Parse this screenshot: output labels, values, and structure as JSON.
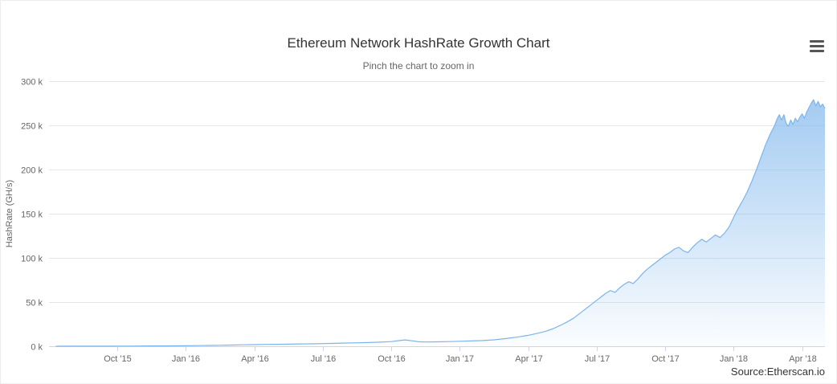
{
  "chart": {
    "source": "Source:Etherscan.io"
  },
  "icons": {
    "menu": "hamburger-icon"
  },
  "colors": {
    "line": "#7cb5ec",
    "area_top": "rgba(124,181,236,0.75)",
    "area_bottom": "rgba(124,181,236,0.03)",
    "grid": "#e6e6e6",
    "axis_line": "#ccd6eb",
    "tick_label": "#666666",
    "title": "#333333"
  },
  "chart_data": {
    "type": "area",
    "title": "Ethereum Network HashRate Growth Chart",
    "subtitle": "Pinch the chart to zoom in",
    "xlabel": "",
    "ylabel": "HashRate (GH/s)",
    "y_unit": "thousand GH/s (axis labels shown with k suffix)",
    "x_unit": "months since 2015-07-01 (x=3 is Oct '15)",
    "xlim": [
      0,
      34
    ],
    "ylim": [
      0,
      300
    ],
    "grid": true,
    "legend": false,
    "xticks": [
      {
        "x": 3,
        "label": "Oct '15"
      },
      {
        "x": 6,
        "label": "Jan '16"
      },
      {
        "x": 9,
        "label": "Apr '16"
      },
      {
        "x": 12,
        "label": "Jul '16"
      },
      {
        "x": 15,
        "label": "Oct '16"
      },
      {
        "x": 18,
        "label": "Jan '17"
      },
      {
        "x": 21,
        "label": "Apr '17"
      },
      {
        "x": 24,
        "label": "Jul '17"
      },
      {
        "x": 27,
        "label": "Oct '17"
      },
      {
        "x": 30,
        "label": "Jan '18"
      },
      {
        "x": 33,
        "label": "Apr '18"
      }
    ],
    "yticks": [
      {
        "y": 0,
        "label": "0 k"
      },
      {
        "y": 50,
        "label": "50 k"
      },
      {
        "y": 100,
        "label": "100 k"
      },
      {
        "y": 150,
        "label": "150 k"
      },
      {
        "y": 200,
        "label": "200 k"
      },
      {
        "y": 250,
        "label": "250 k"
      },
      {
        "y": 300,
        "label": "300 k"
      }
    ],
    "points": [
      [
        0.3,
        0.02
      ],
      [
        1,
        0.05
      ],
      [
        1.5,
        0.08
      ],
      [
        2,
        0.1
      ],
      [
        2.5,
        0.13
      ],
      [
        3,
        0.17
      ],
      [
        3.5,
        0.22
      ],
      [
        4,
        0.27
      ],
      [
        4.5,
        0.32
      ],
      [
        5,
        0.38
      ],
      [
        5.5,
        0.45
      ],
      [
        6,
        0.55
      ],
      [
        6.5,
        0.7
      ],
      [
        7,
        0.9
      ],
      [
        7.5,
        1.1
      ],
      [
        8,
        1.35
      ],
      [
        8.5,
        1.6
      ],
      [
        9,
        1.85
      ],
      [
        9.5,
        2.05
      ],
      [
        10,
        2.2
      ],
      [
        10.5,
        2.4
      ],
      [
        11,
        2.6
      ],
      [
        11.5,
        2.75
      ],
      [
        12,
        3.0
      ],
      [
        12.5,
        3.3
      ],
      [
        13,
        3.6
      ],
      [
        13.5,
        3.9
      ],
      [
        14,
        4.2
      ],
      [
        14.5,
        4.6
      ],
      [
        15,
        5.3
      ],
      [
        15.3,
        6.3
      ],
      [
        15.6,
        7.2
      ],
      [
        15.9,
        6.2
      ],
      [
        16.2,
        5.1
      ],
      [
        16.5,
        4.8
      ],
      [
        17,
        5.0
      ],
      [
        17.5,
        5.3
      ],
      [
        18,
        5.6
      ],
      [
        18.5,
        6.0
      ],
      [
        19,
        6.5
      ],
      [
        19.5,
        7.3
      ],
      [
        20,
        8.6
      ],
      [
        20.5,
        10.3
      ],
      [
        21,
        12.4
      ],
      [
        21.4,
        14.6
      ],
      [
        21.8,
        17.2
      ],
      [
        22.1,
        20
      ],
      [
        22.4,
        23.5
      ],
      [
        22.7,
        27.5
      ],
      [
        23,
        32
      ],
      [
        23.3,
        38
      ],
      [
        23.6,
        44
      ],
      [
        23.8,
        48
      ],
      [
        24,
        52
      ],
      [
        24.2,
        56
      ],
      [
        24.4,
        60
      ],
      [
        24.6,
        63
      ],
      [
        24.8,
        61
      ],
      [
        25,
        66
      ],
      [
        25.2,
        70
      ],
      [
        25.4,
        73
      ],
      [
        25.6,
        71
      ],
      [
        25.8,
        76
      ],
      [
        26,
        82
      ],
      [
        26.2,
        87
      ],
      [
        26.4,
        91
      ],
      [
        26.6,
        95
      ],
      [
        26.8,
        99
      ],
      [
        27,
        103
      ],
      [
        27.2,
        106
      ],
      [
        27.4,
        110
      ],
      [
        27.6,
        112
      ],
      [
        27.8,
        108
      ],
      [
        28,
        106
      ],
      [
        28.2,
        112
      ],
      [
        28.4,
        117
      ],
      [
        28.6,
        121
      ],
      [
        28.8,
        118
      ],
      [
        29,
        122
      ],
      [
        29.2,
        126
      ],
      [
        29.4,
        123
      ],
      [
        29.6,
        128
      ],
      [
        29.8,
        135
      ],
      [
        30,
        146
      ],
      [
        30.2,
        156
      ],
      [
        30.4,
        165
      ],
      [
        30.6,
        175
      ],
      [
        30.8,
        187
      ],
      [
        31,
        200
      ],
      [
        31.2,
        214
      ],
      [
        31.4,
        228
      ],
      [
        31.6,
        240
      ],
      [
        31.8,
        250
      ],
      [
        31.9,
        257
      ],
      [
        32,
        262
      ],
      [
        32.1,
        256
      ],
      [
        32.2,
        262
      ],
      [
        32.3,
        252
      ],
      [
        32.4,
        249
      ],
      [
        32.5,
        256
      ],
      [
        32.6,
        251
      ],
      [
        32.7,
        258
      ],
      [
        32.8,
        254
      ],
      [
        32.9,
        259
      ],
      [
        33,
        263
      ],
      [
        33.1,
        258
      ],
      [
        33.2,
        265
      ],
      [
        33.3,
        270
      ],
      [
        33.4,
        275
      ],
      [
        33.5,
        279
      ],
      [
        33.6,
        272
      ],
      [
        33.7,
        277
      ],
      [
        33.8,
        271
      ],
      [
        33.9,
        274
      ],
      [
        34,
        269
      ]
    ]
  }
}
